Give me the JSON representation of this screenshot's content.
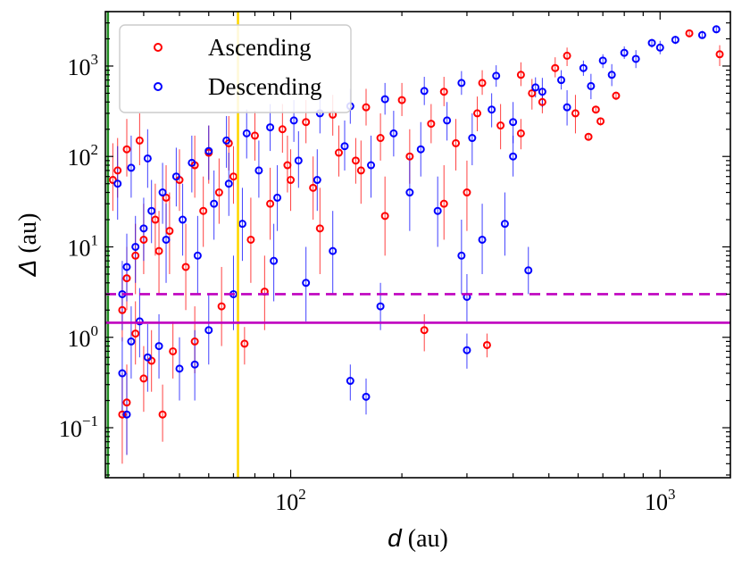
{
  "chart_data": {
    "type": "scatter",
    "title": "",
    "xlabel_symbol": "d",
    "xlabel_unit": "(au)",
    "ylabel_symbol": "Δ",
    "ylabel_unit": "(au)",
    "xscale": "log",
    "yscale": "log",
    "xlim": [
      31.5,
      1550
    ],
    "ylim": [
      0.028,
      4000
    ],
    "x_ticks": [
      {
        "value": 100,
        "base": "10",
        "exp": "2"
      },
      {
        "value": 1000,
        "base": "10",
        "exp": "3"
      }
    ],
    "y_ticks": [
      {
        "value": 0.1,
        "base": "10",
        "exp": "−1"
      },
      {
        "value": 1,
        "base": "10",
        "exp": "0"
      },
      {
        "value": 10,
        "base": "10",
        "exp": "1"
      },
      {
        "value": 100,
        "base": "10",
        "exp": "2"
      },
      {
        "value": 1000,
        "base": "10",
        "exp": "3"
      }
    ],
    "legend": {
      "position": "upper-left",
      "entries": [
        {
          "label": "Ascending",
          "color": "#ff0000"
        },
        {
          "label": "Descending",
          "color": "#0000ff"
        }
      ]
    },
    "reference_lines": [
      {
        "orientation": "vertical",
        "value": 32,
        "color": "#228b22",
        "style": "solid"
      },
      {
        "orientation": "vertical",
        "value": 72,
        "color": "#ffd700",
        "style": "solid"
      },
      {
        "orientation": "horizontal",
        "value": 3.0,
        "color": "#bf00bf",
        "style": "dashed"
      },
      {
        "orientation": "horizontal",
        "value": 1.45,
        "color": "#bf00bf",
        "style": "solid"
      }
    ],
    "series": [
      {
        "name": "Ascending",
        "color": "#ff0000",
        "points": [
          [
            1450,
            1350,
            1000,
            1700
          ],
          [
            1200,
            2300,
            2100,
            2500
          ],
          [
            760,
            470,
            420,
            520
          ],
          [
            690,
            245,
            220,
            270
          ],
          [
            670,
            330,
            300,
            360
          ],
          [
            640,
            165,
            150,
            180
          ],
          [
            560,
            1300,
            1000,
            1600
          ],
          [
            480,
            400,
            300,
            550
          ],
          [
            420,
            180,
            120,
            260
          ],
          [
            340,
            0.82,
            0.6,
            1.1
          ],
          [
            300,
            40,
            15,
            90
          ],
          [
            260,
            30,
            12,
            80
          ],
          [
            230,
            1.2,
            0.7,
            1.8
          ],
          [
            180,
            22,
            8,
            60
          ],
          [
            150,
            90,
            50,
            160
          ],
          [
            120,
            16,
            5,
            45
          ],
          [
            100,
            55,
            25,
            120
          ],
          [
            85,
            3.2,
            1.2,
            8
          ],
          [
            75,
            0.85,
            0.5,
            1.3
          ],
          [
            65,
            2.2,
            0.8,
            6
          ],
          [
            55,
            0.9,
            0.4,
            2.2
          ],
          [
            48,
            0.7,
            0.35,
            1.5
          ],
          [
            45,
            0.14,
            0.07,
            0.3
          ],
          [
            42,
            0.55,
            0.25,
            1.2
          ],
          [
            40,
            0.35,
            0.15,
            0.8
          ],
          [
            38,
            1.1,
            0.5,
            2.5
          ],
          [
            36,
            0.19,
            0.05,
            0.5
          ],
          [
            35,
            0.14,
            0.04,
            0.4
          ],
          [
            35,
            2.0,
            0.9,
            4.5
          ],
          [
            36,
            4.5,
            2,
            10
          ],
          [
            38,
            8,
            3,
            18
          ],
          [
            40,
            12,
            5,
            30
          ],
          [
            43,
            20,
            8,
            50
          ],
          [
            46,
            35,
            15,
            80
          ],
          [
            50,
            55,
            25,
            120
          ],
          [
            55,
            80,
            35,
            170
          ],
          [
            60,
            110,
            50,
            220
          ],
          [
            68,
            140,
            70,
            280
          ],
          [
            80,
            170,
            90,
            320
          ],
          [
            95,
            200,
            110,
            380
          ],
          [
            110,
            240,
            140,
            420
          ],
          [
            130,
            290,
            170,
            480
          ],
          [
            160,
            350,
            220,
            560
          ],
          [
            200,
            420,
            280,
            650
          ],
          [
            260,
            520,
            360,
            760
          ],
          [
            330,
            650,
            480,
            900
          ],
          [
            420,
            800,
            600,
            1100
          ],
          [
            520,
            950,
            750,
            1250
          ],
          [
            33,
            55,
            25,
            140
          ],
          [
            34,
            70,
            35,
            160
          ],
          [
            36,
            120,
            60,
            260
          ],
          [
            39,
            150,
            80,
            300
          ],
          [
            44,
            9,
            3,
            25
          ],
          [
            47,
            15,
            5,
            40
          ],
          [
            52,
            6,
            2,
            18
          ],
          [
            58,
            25,
            10,
            60
          ],
          [
            64,
            40,
            18,
            95
          ],
          [
            70,
            60,
            30,
            130
          ],
          [
            78,
            12,
            4,
            35
          ],
          [
            88,
            30,
            12,
            75
          ],
          [
            98,
            80,
            40,
            170
          ],
          [
            115,
            45,
            20,
            100
          ],
          [
            135,
            110,
            60,
            220
          ],
          [
            155,
            70,
            30,
            150
          ],
          [
            175,
            160,
            90,
            300
          ],
          [
            210,
            100,
            50,
            200
          ],
          [
            240,
            230,
            140,
            380
          ],
          [
            280,
            140,
            70,
            260
          ],
          [
            320,
            300,
            190,
            460
          ],
          [
            370,
            220,
            120,
            380
          ],
          [
            450,
            500,
            330,
            720
          ],
          [
            590,
            300,
            180,
            480
          ]
        ]
      },
      {
        "name": "Descending",
        "color": "#0000ff",
        "points": [
          [
            1420,
            2550,
            2300,
            2800
          ],
          [
            1300,
            2200,
            2000,
            2450
          ],
          [
            1100,
            1950,
            1750,
            2150
          ],
          [
            950,
            1800,
            1600,
            2000
          ],
          [
            800,
            1400,
            1200,
            1650
          ],
          [
            700,
            1150,
            950,
            1350
          ],
          [
            620,
            950,
            780,
            1150
          ],
          [
            540,
            700,
            550,
            900
          ],
          [
            460,
            580,
            450,
            750
          ],
          [
            400,
            100,
            60,
            170
          ],
          [
            380,
            18,
            8,
            40
          ],
          [
            330,
            12,
            5,
            30
          ],
          [
            300,
            0.72,
            0.45,
            1.1
          ],
          [
            300,
            2.8,
            1.5,
            5
          ],
          [
            290,
            8,
            3,
            20
          ],
          [
            250,
            25,
            10,
            60
          ],
          [
            160,
            0.22,
            0.14,
            0.35
          ],
          [
            145,
            0.33,
            0.2,
            0.5
          ],
          [
            175,
            2.2,
            1.2,
            4
          ],
          [
            440,
            5.5,
            3,
            10
          ],
          [
            210,
            40,
            15,
            100
          ],
          [
            130,
            9,
            3,
            25
          ],
          [
            110,
            4,
            1.5,
            10
          ],
          [
            90,
            7,
            2.5,
            18
          ],
          [
            70,
            3,
            1.2,
            8
          ],
          [
            60,
            1.2,
            0.5,
            3
          ],
          [
            55,
            0.5,
            0.2,
            1.2
          ],
          [
            50,
            0.45,
            0.2,
            1
          ],
          [
            44,
            0.8,
            0.35,
            1.8
          ],
          [
            41,
            0.6,
            0.25,
            1.4
          ],
          [
            39,
            1.5,
            0.6,
            3.5
          ],
          [
            37,
            0.9,
            0.35,
            2.2
          ],
          [
            36,
            0.14,
            0.05,
            0.4
          ],
          [
            35,
            0.4,
            0.15,
            1
          ],
          [
            35,
            3,
            1.2,
            7
          ],
          [
            36,
            6,
            2.5,
            14
          ],
          [
            38,
            10,
            4,
            22
          ],
          [
            40,
            16,
            7,
            35
          ],
          [
            42,
            25,
            11,
            55
          ],
          [
            45,
            40,
            18,
            85
          ],
          [
            49,
            60,
            28,
            125
          ],
          [
            54,
            85,
            40,
            170
          ],
          [
            60,
            115,
            55,
            220
          ],
          [
            67,
            150,
            75,
            280
          ],
          [
            76,
            180,
            95,
            330
          ],
          [
            88,
            210,
            115,
            380
          ],
          [
            102,
            250,
            145,
            420
          ],
          [
            120,
            300,
            180,
            490
          ],
          [
            145,
            360,
            230,
            560
          ],
          [
            180,
            430,
            290,
            650
          ],
          [
            230,
            530,
            370,
            760
          ],
          [
            290,
            650,
            480,
            880
          ],
          [
            360,
            780,
            590,
            1020
          ],
          [
            34,
            50,
            20,
            130
          ],
          [
            37,
            75,
            35,
            170
          ],
          [
            41,
            95,
            45,
            200
          ],
          [
            46,
            12,
            4,
            30
          ],
          [
            51,
            20,
            8,
            50
          ],
          [
            56,
            8,
            3,
            22
          ],
          [
            62,
            30,
            12,
            70
          ],
          [
            68,
            50,
            22,
            110
          ],
          [
            74,
            18,
            7,
            45
          ],
          [
            82,
            70,
            35,
            150
          ],
          [
            92,
            35,
            15,
            80
          ],
          [
            105,
            90,
            45,
            190
          ],
          [
            118,
            55,
            25,
            120
          ],
          [
            140,
            130,
            70,
            250
          ],
          [
            165,
            80,
            35,
            170
          ],
          [
            190,
            180,
            100,
            320
          ],
          [
            225,
            120,
            60,
            240
          ],
          [
            265,
            250,
            150,
            400
          ],
          [
            310,
            160,
            80,
            300
          ],
          [
            350,
            330,
            210,
            500
          ],
          [
            400,
            240,
            140,
            400
          ],
          [
            480,
            520,
            350,
            740
          ],
          [
            560,
            350,
            220,
            540
          ],
          [
            650,
            600,
            430,
            820
          ],
          [
            740,
            800,
            600,
            1050
          ],
          [
            860,
            1200,
            950,
            1500
          ],
          [
            1000,
            1600,
            1350,
            1900
          ]
        ]
      }
    ]
  }
}
